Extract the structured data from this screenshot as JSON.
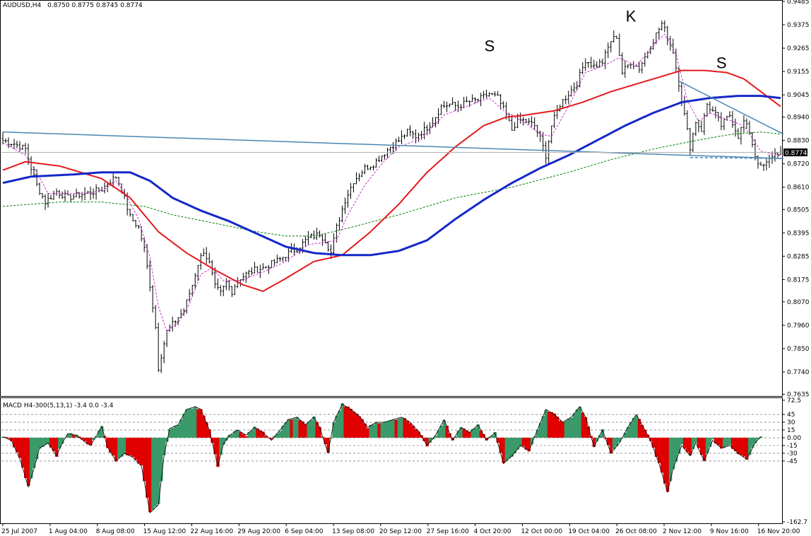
{
  "chart_data": {
    "type": "candlestick",
    "header": {
      "symbol": "AUDUSD,H4",
      "ohlc": "0.8750 0.8775 0.8745 0.8774"
    },
    "price_axis": {
      "range": [
        0.7635,
        0.948
      ],
      "ticks": [
        "0.9485",
        "0.9375",
        "0.9265",
        "0.9155",
        "0.9045",
        "0.8940",
        "0.8830",
        "0.8720",
        "0.8610",
        "0.8505",
        "0.8395",
        "0.8285",
        "0.8175",
        "0.8070",
        "0.7960",
        "0.7850",
        "0.7740",
        "0.7635"
      ],
      "current_price": "0.8774"
    },
    "time_axis": {
      "labels": [
        "25 Jul 2007",
        "1 Aug 04:00",
        "8 Aug 08:00",
        "15 Aug 12:00",
        "22 Aug 16:00",
        "29 Aug 20:00",
        "6 Sep 04:00",
        "13 Sep 08:00",
        "20 Sep 12:00",
        "27 Sep 16:00",
        "4 Oct 20:00",
        "12 Oct 00:00",
        "19 Oct 04:00",
        "26 Oct 08:00",
        "2 Nov 12:00",
        "9 Nov 16:00",
        "16 Nov 20:00"
      ]
    },
    "price_path": [
      [
        0,
        0.883
      ],
      [
        4,
        0.8815
      ],
      [
        8,
        0.879
      ],
      [
        10,
        0.87
      ],
      [
        12,
        0.862
      ],
      [
        15,
        0.854
      ],
      [
        19,
        0.859
      ],
      [
        23,
        0.856
      ],
      [
        27,
        0.8575
      ],
      [
        31,
        0.8585
      ],
      [
        35,
        0.86
      ],
      [
        38,
        0.864
      ],
      [
        40,
        0.866
      ],
      [
        42,
        0.86
      ],
      [
        45,
        0.847
      ],
      [
        48,
        0.842
      ],
      [
        50,
        0.832
      ],
      [
        52,
        0.815
      ],
      [
        54,
        0.795
      ],
      [
        55,
        0.776
      ],
      [
        56,
        0.782
      ],
      [
        58,
        0.793
      ],
      [
        61,
        0.798
      ],
      [
        64,
        0.803
      ],
      [
        67,
        0.815
      ],
      [
        69,
        0.825
      ],
      [
        71,
        0.831
      ],
      [
        73,
        0.825
      ],
      [
        75,
        0.814
      ],
      [
        77,
        0.811
      ],
      [
        79,
        0.816
      ],
      [
        81,
        0.812
      ],
      [
        83,
        0.8175
      ],
      [
        86,
        0.82
      ],
      [
        89,
        0.822
      ],
      [
        92,
        0.823
      ],
      [
        95,
        0.825
      ],
      [
        98,
        0.827
      ],
      [
        101,
        0.83
      ],
      [
        104,
        0.832
      ],
      [
        108,
        0.837
      ],
      [
        112,
        0.839
      ],
      [
        114,
        0.836
      ],
      [
        116,
        0.83
      ],
      [
        118,
        0.842
      ],
      [
        121,
        0.855
      ],
      [
        124,
        0.864
      ],
      [
        128,
        0.87
      ],
      [
        131,
        0.872
      ],
      [
        134,
        0.876
      ],
      [
        137,
        0.88
      ],
      [
        140,
        0.883
      ],
      [
        143,
        0.887
      ],
      [
        146,
        0.885
      ],
      [
        149,
        0.888
      ],
      [
        152,
        0.892
      ],
      [
        155,
        0.899
      ],
      [
        158,
        0.9
      ],
      [
        161,
        0.899
      ],
      [
        164,
        0.901
      ],
      [
        168,
        0.902
      ],
      [
        172,
        0.905
      ],
      [
        175,
        0.903
      ],
      [
        178,
        0.895
      ],
      [
        180,
        0.888
      ],
      [
        182,
        0.893
      ],
      [
        185,
        0.892
      ],
      [
        188,
        0.89
      ],
      [
        190,
        0.884
      ],
      [
        192,
        0.876
      ],
      [
        194,
        0.89
      ],
      [
        197,
        0.9
      ],
      [
        200,
        0.905
      ],
      [
        203,
        0.91
      ],
      [
        206,
        0.921
      ],
      [
        209,
        0.918
      ],
      [
        212,
        0.92
      ],
      [
        215,
        0.93
      ],
      [
        217,
        0.932
      ],
      [
        219,
        0.915
      ],
      [
        222,
        0.92
      ],
      [
        225,
        0.917
      ],
      [
        228,
        0.925
      ],
      [
        231,
        0.933
      ],
      [
        233,
        0.938
      ],
      [
        235,
        0.932
      ],
      [
        237,
        0.925
      ],
      [
        239,
        0.91
      ],
      [
        241,
        0.895
      ],
      [
        243,
        0.88
      ],
      [
        245,
        0.892
      ],
      [
        247,
        0.888
      ],
      [
        249,
        0.9
      ],
      [
        252,
        0.895
      ],
      [
        254,
        0.89
      ],
      [
        257,
        0.895
      ],
      [
        260,
        0.885
      ],
      [
        262,
        0.892
      ],
      [
        264,
        0.887
      ],
      [
        266,
        0.876
      ],
      [
        268,
        0.87
      ],
      [
        270,
        0.872
      ],
      [
        272,
        0.876
      ],
      [
        274,
        0.8774
      ]
    ],
    "sma_red": [
      [
        0,
        0.869
      ],
      [
        8,
        0.873
      ],
      [
        20,
        0.871
      ],
      [
        35,
        0.865
      ],
      [
        45,
        0.856
      ],
      [
        55,
        0.84
      ],
      [
        65,
        0.83
      ],
      [
        75,
        0.822
      ],
      [
        85,
        0.815
      ],
      [
        92,
        0.812
      ],
      [
        100,
        0.818
      ],
      [
        110,
        0.826
      ],
      [
        120,
        0.829
      ],
      [
        130,
        0.84
      ],
      [
        140,
        0.853
      ],
      [
        150,
        0.868
      ],
      [
        160,
        0.88
      ],
      [
        170,
        0.89
      ],
      [
        178,
        0.894
      ],
      [
        185,
        0.895
      ],
      [
        195,
        0.897
      ],
      [
        205,
        0.901
      ],
      [
        215,
        0.906
      ],
      [
        225,
        0.91
      ],
      [
        235,
        0.914
      ],
      [
        240,
        0.916
      ],
      [
        248,
        0.916
      ],
      [
        256,
        0.915
      ],
      [
        262,
        0.912
      ],
      [
        268,
        0.906
      ],
      [
        272,
        0.902
      ],
      [
        275,
        0.899
      ]
    ],
    "sma_blue": [
      [
        0,
        0.863
      ],
      [
        10,
        0.866
      ],
      [
        25,
        0.867
      ],
      [
        35,
        0.868
      ],
      [
        45,
        0.868
      ],
      [
        52,
        0.864
      ],
      [
        60,
        0.856
      ],
      [
        70,
        0.85
      ],
      [
        80,
        0.845
      ],
      [
        90,
        0.839
      ],
      [
        100,
        0.833
      ],
      [
        110,
        0.83
      ],
      [
        120,
        0.829
      ],
      [
        130,
        0.829
      ],
      [
        140,
        0.831
      ],
      [
        150,
        0.836
      ],
      [
        160,
        0.846
      ],
      [
        170,
        0.855
      ],
      [
        180,
        0.863
      ],
      [
        190,
        0.87
      ],
      [
        200,
        0.876
      ],
      [
        210,
        0.883
      ],
      [
        220,
        0.89
      ],
      [
        230,
        0.896
      ],
      [
        240,
        0.901
      ],
      [
        250,
        0.903
      ],
      [
        260,
        0.904
      ],
      [
        268,
        0.904
      ],
      [
        275,
        0.903
      ]
    ],
    "sma_green": [
      [
        0,
        0.852
      ],
      [
        20,
        0.854
      ],
      [
        35,
        0.854
      ],
      [
        50,
        0.852
      ],
      [
        60,
        0.848
      ],
      [
        75,
        0.844
      ],
      [
        90,
        0.84
      ],
      [
        100,
        0.838
      ],
      [
        110,
        0.838
      ],
      [
        120,
        0.841
      ],
      [
        140,
        0.848
      ],
      [
        160,
        0.856
      ],
      [
        180,
        0.861
      ],
      [
        200,
        0.868
      ],
      [
        215,
        0.874
      ],
      [
        230,
        0.879
      ],
      [
        245,
        0.883
      ],
      [
        258,
        0.886
      ],
      [
        268,
        0.887
      ],
      [
        275,
        0.886
      ]
    ],
    "ema_magenta": [
      [
        0,
        0.882
      ],
      [
        8,
        0.876
      ],
      [
        12,
        0.868
      ],
      [
        16,
        0.858
      ],
      [
        22,
        0.858
      ],
      [
        30,
        0.858
      ],
      [
        36,
        0.86
      ],
      [
        40,
        0.864
      ],
      [
        44,
        0.856
      ],
      [
        48,
        0.846
      ],
      [
        52,
        0.828
      ],
      [
        55,
        0.805
      ],
      [
        58,
        0.793
      ],
      [
        62,
        0.797
      ],
      [
        66,
        0.806
      ],
      [
        70,
        0.82
      ],
      [
        74,
        0.823
      ],
      [
        78,
        0.817
      ],
      [
        84,
        0.817
      ],
      [
        92,
        0.821
      ],
      [
        100,
        0.826
      ],
      [
        108,
        0.834
      ],
      [
        114,
        0.835
      ],
      [
        118,
        0.836
      ],
      [
        122,
        0.848
      ],
      [
        128,
        0.862
      ],
      [
        134,
        0.872
      ],
      [
        140,
        0.88
      ],
      [
        148,
        0.884
      ],
      [
        156,
        0.895
      ],
      [
        164,
        0.899
      ],
      [
        172,
        0.903
      ],
      [
        178,
        0.896
      ],
      [
        184,
        0.892
      ],
      [
        190,
        0.886
      ],
      [
        194,
        0.885
      ],
      [
        200,
        0.899
      ],
      [
        206,
        0.915
      ],
      [
        212,
        0.918
      ],
      [
        218,
        0.922
      ],
      [
        224,
        0.918
      ],
      [
        230,
        0.928
      ],
      [
        234,
        0.933
      ],
      [
        238,
        0.924
      ],
      [
        242,
        0.902
      ],
      [
        246,
        0.892
      ],
      [
        250,
        0.896
      ],
      [
        256,
        0.893
      ],
      [
        262,
        0.89
      ],
      [
        268,
        0.878
      ],
      [
        274,
        0.876
      ]
    ],
    "trendlines": [
      {
        "from": [
          0,
          0.887
        ],
        "to": [
          276,
          0.8745
        ],
        "color": "#4a86b4"
      },
      {
        "from": [
          239,
          0.911
        ],
        "to": [
          276,
          0.886
        ],
        "color": "#4a86b4"
      },
      {
        "from": [
          243,
          0.875
        ],
        "to": [
          276,
          0.8745
        ],
        "color": "#4a86b4",
        "dashed": true
      }
    ],
    "pattern_labels": [
      {
        "text": "S",
        "bar": 172,
        "price": 0.925
      },
      {
        "text": "K",
        "bar": 222,
        "price": 0.939
      },
      {
        "text": "S",
        "bar": 254,
        "price": 0.917
      }
    ],
    "macd": {
      "header": "MACD H4-300(5,13,1) -3.4 0.0 -3.4",
      "range": [
        -162.7,
        72.5
      ],
      "levels": [
        "72.5",
        "45",
        "30",
        "15",
        "0.00",
        "-15",
        "-30",
        "-45",
        "-162.7"
      ],
      "values": [
        [
          0,
          2
        ],
        [
          3,
          -5
        ],
        [
          6,
          -40
        ],
        [
          9,
          -95
        ],
        [
          11,
          -60
        ],
        [
          13,
          -20
        ],
        [
          16,
          -10
        ],
        [
          19,
          -35
        ],
        [
          21,
          -10
        ],
        [
          23,
          8
        ],
        [
          26,
          5
        ],
        [
          29,
          -8
        ],
        [
          31,
          -15
        ],
        [
          33,
          3
        ],
        [
          35,
          22
        ],
        [
          37,
          -18
        ],
        [
          40,
          -45
        ],
        [
          43,
          -30
        ],
        [
          46,
          -38
        ],
        [
          49,
          -55
        ],
        [
          52,
          -145
        ],
        [
          55,
          -130
        ],
        [
          57,
          -35
        ],
        [
          59,
          18
        ],
        [
          62,
          25
        ],
        [
          65,
          55
        ],
        [
          68,
          60
        ],
        [
          70,
          55
        ],
        [
          73,
          15
        ],
        [
          76,
          -55
        ],
        [
          78,
          -12
        ],
        [
          80,
          4
        ],
        [
          83,
          15
        ],
        [
          86,
          5
        ],
        [
          89,
          20
        ],
        [
          92,
          10
        ],
        [
          95,
          -5
        ],
        [
          98,
          15
        ],
        [
          101,
          35
        ],
        [
          104,
          40
        ],
        [
          107,
          25
        ],
        [
          110,
          40
        ],
        [
          112,
          20
        ],
        [
          115,
          -30
        ],
        [
          117,
          30
        ],
        [
          120,
          65
        ],
        [
          123,
          55
        ],
        [
          126,
          42
        ],
        [
          129,
          20
        ],
        [
          132,
          30
        ],
        [
          135,
          30
        ],
        [
          138,
          35
        ],
        [
          141,
          40
        ],
        [
          144,
          30
        ],
        [
          147,
          12
        ],
        [
          150,
          -15
        ],
        [
          153,
          5
        ],
        [
          156,
          35
        ],
        [
          159,
          -5
        ],
        [
          162,
          20
        ],
        [
          165,
          10
        ],
        [
          168,
          25
        ],
        [
          171,
          -5
        ],
        [
          174,
          10
        ],
        [
          177,
          -50
        ],
        [
          180,
          -35
        ],
        [
          183,
          -15
        ],
        [
          186,
          -25
        ],
        [
          189,
          15
        ],
        [
          192,
          55
        ],
        [
          195,
          45
        ],
        [
          198,
          30
        ],
        [
          201,
          40
        ],
        [
          204,
          60
        ],
        [
          206,
          40
        ],
        [
          209,
          -18
        ],
        [
          212,
          15
        ],
        [
          215,
          -30
        ],
        [
          218,
          -10
        ],
        [
          221,
          20
        ],
        [
          224,
          45
        ],
        [
          226,
          25
        ],
        [
          229,
          -5
        ],
        [
          232,
          -50
        ],
        [
          235,
          -105
        ],
        [
          237,
          -60
        ],
        [
          240,
          -15
        ],
        [
          243,
          -35
        ],
        [
          245,
          -10
        ],
        [
          248,
          -45
        ],
        [
          251,
          -5
        ],
        [
          254,
          -20
        ],
        [
          257,
          -15
        ],
        [
          260,
          -30
        ],
        [
          263,
          -42
        ],
        [
          266,
          -10
        ],
        [
          268,
          2
        ]
      ]
    }
  }
}
